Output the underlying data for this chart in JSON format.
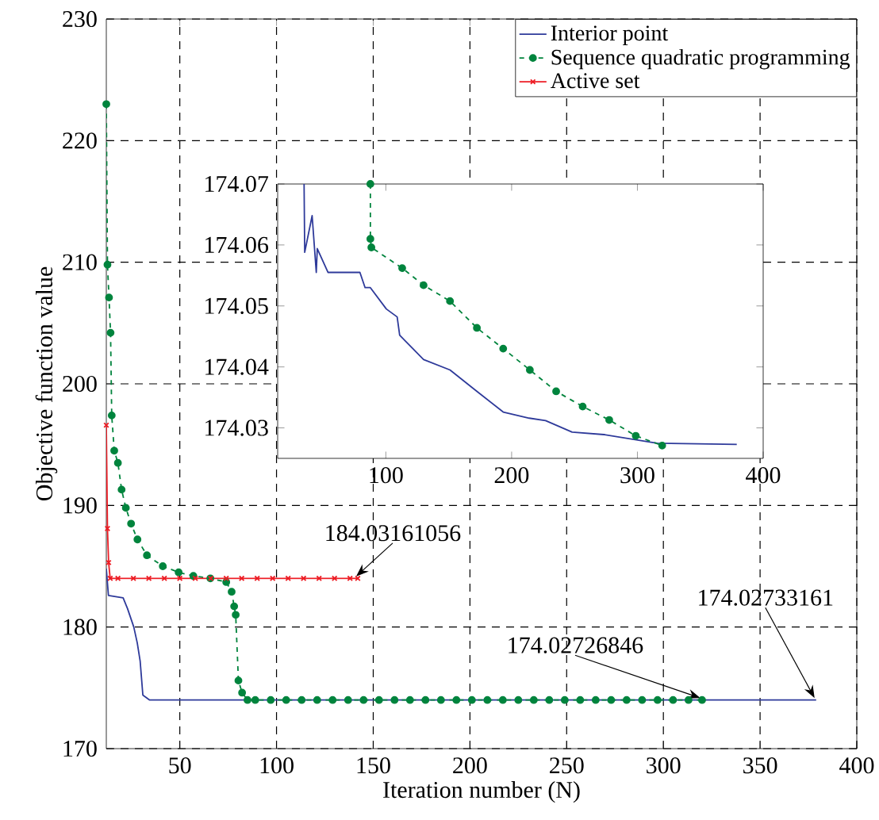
{
  "chart_data": [
    {
      "type": "line",
      "xlabel": "Iteration number (N)",
      "ylabel": "Objective function value",
      "xlim": [
        12,
        400
      ],
      "ylim": [
        170,
        230
      ],
      "xticks": [
        50,
        100,
        150,
        200,
        250,
        300,
        350,
        400
      ],
      "yticks": [
        170,
        180,
        190,
        200,
        210,
        220,
        230
      ],
      "grid": true,
      "legend": "top right",
      "series": [
        {
          "name": "Interior point",
          "color": "#2e3a9a",
          "marker": "none",
          "line_style": "solid",
          "x": [
            12,
            13.1,
            20.7,
            23,
            26.2,
            28,
            29.5,
            30.9,
            34.4,
            379
          ],
          "values": [
            184.8,
            182.6,
            182.4,
            181.5,
            180,
            178.7,
            177.2,
            174.4,
            174.0,
            174.0
          ]
        },
        {
          "name": "Sequence quadratic programming",
          "color": "#00843d",
          "marker": "circle",
          "line_style": "dashed",
          "x": [
            12,
            12.6,
            13.4,
            14.2,
            14.8,
            16.1,
            18,
            19.9,
            22.1,
            24.8,
            28.1,
            33,
            41.2,
            49.4,
            57,
            65.8,
            74,
            76.8,
            78.1,
            78.9,
            80.3,
            82.2,
            85,
            89,
            97,
            105,
            113,
            121,
            129,
            137,
            145,
            153,
            161,
            169,
            177,
            185,
            193,
            201,
            209,
            217,
            225,
            233,
            241,
            249,
            257,
            265,
            273,
            281,
            289,
            297,
            305,
            313,
            320
          ],
          "values": [
            223,
            209.8,
            207.1,
            204.2,
            197.4,
            194.5,
            193.5,
            191.3,
            189.8,
            188.5,
            187.2,
            185.9,
            185.0,
            184.5,
            184.2,
            184.0,
            183.7,
            182.9,
            181.7,
            181.0,
            175.6,
            174.6,
            174.0,
            174.0,
            174.0,
            174.0,
            174.0,
            174.0,
            174.0,
            174.0,
            174.0,
            174.0,
            174.0,
            174.0,
            174.0,
            174.0,
            174.0,
            174.0,
            174.0,
            174.0,
            174.0,
            174.0,
            174.0,
            174.0,
            174.0,
            174.0,
            174.0,
            174.0,
            174.0,
            174.0,
            174.0,
            174.0,
            174.0
          ]
        },
        {
          "name": "Active set",
          "color": "#ed1c24",
          "marker": "cross",
          "line_style": "solid",
          "x": [
            12,
            12.6,
            13.2,
            14,
            18,
            26,
            34,
            42,
            50,
            58,
            66,
            74,
            82,
            90,
            98,
            106,
            114,
            122,
            130,
            138,
            142
          ],
          "values": [
            196.6,
            188.1,
            185.3,
            184.0,
            184.0,
            184.0,
            184.0,
            184.0,
            184.0,
            184.0,
            184.0,
            184.0,
            184.0,
            184.0,
            184.0,
            184.0,
            184.0,
            184.0,
            184.0,
            184.0,
            184.0
          ]
        }
      ],
      "annotations": [
        {
          "text": "184.03161056",
          "x": 142,
          "y": 184.03161056
        },
        {
          "text": "174.02726846",
          "x": 320,
          "y": 174.02726846
        },
        {
          "text": "174.02733161",
          "x": 379,
          "y": 174.02733161
        }
      ]
    },
    {
      "type": "line",
      "xlim": [
        14,
        400
      ],
      "ylim": [
        174.025,
        174.07
      ],
      "xticks": [
        100,
        200,
        300,
        400
      ],
      "yticks": [
        174.03,
        174.04,
        174.05,
        174.06,
        174.07
      ],
      "series": [
        {
          "color": "#2e3a9a",
          "marker": "none",
          "line_style": "solid",
          "x": [
            35,
            35.5,
            41.4,
            44.7,
            45.5,
            54,
            79.4,
            83.5,
            87.7,
            100.4,
            109,
            111,
            130,
            151,
            172.4,
            193.3,
            214,
            227,
            248.1,
            273.4,
            315.6,
            379
          ],
          "values": [
            174.07,
            174.0588,
            174.0648,
            174.0555,
            174.0594,
            174.0555,
            174.0555,
            174.053,
            174.053,
            174.0495,
            174.0482,
            174.0452,
            174.0412,
            174.0395,
            174.036,
            174.0326,
            174.0316,
            174.0312,
            174.0293,
            174.0289,
            174.0275,
            174.0273
          ]
        },
        {
          "color": "#00843d",
          "marker": "circle",
          "line_style": "dashed",
          "x": [
            87.7,
            87.7,
            88.5,
            113,
            130,
            151,
            172.4,
            193.3,
            214.5,
            235.4,
            256.5,
            277.6,
            298.7,
            319.7
          ],
          "values": [
            174.07,
            174.061,
            174.0596,
            174.0562,
            174.0534,
            174.0508,
            174.0464,
            174.043,
            174.0395,
            174.036,
            174.0335,
            174.0313,
            174.0287,
            174.0271
          ]
        }
      ]
    }
  ]
}
